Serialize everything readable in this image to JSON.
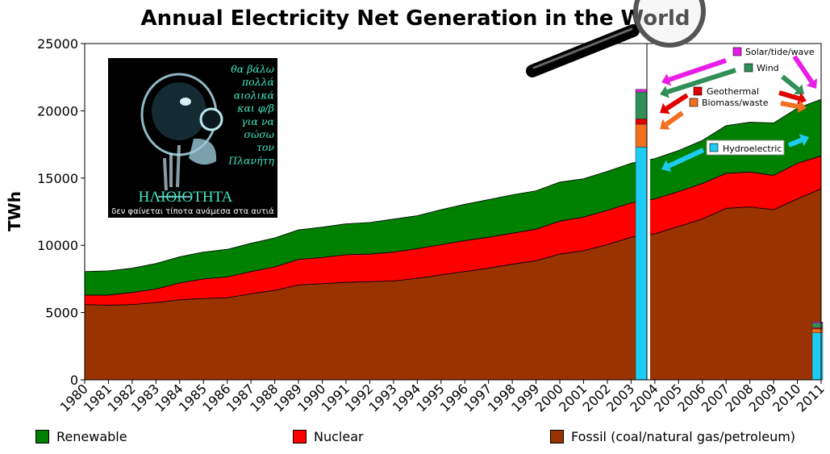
{
  "chart_data": {
    "type": "area",
    "title": "Annual Electricity Net Generation in the World",
    "ylabel": "TWh",
    "xlabel": "",
    "ylim": [
      0,
      25000
    ],
    "yticks": [
      "0",
      "5000",
      "10000",
      "15000",
      "20000",
      "25000"
    ],
    "x": [
      "1980",
      "1981",
      "1982",
      "1983",
      "1984",
      "1985",
      "1986",
      "1987",
      "1988",
      "1989",
      "1990",
      "1991",
      "1992",
      "1993",
      "1994",
      "1995",
      "1996",
      "1997",
      "1998",
      "1999",
      "2000",
      "2001",
      "2002",
      "2003",
      "2004",
      "2005",
      "2006",
      "2007",
      "2008",
      "2009",
      "2010",
      "2011"
    ],
    "stacked": true,
    "series": [
      {
        "name": "Fossil (coal/natural gas/petroleum)",
        "color": "#993300",
        "values": [
          5600,
          5550,
          5600,
          5750,
          5950,
          6050,
          6100,
          6400,
          6650,
          7050,
          7150,
          7250,
          7300,
          7350,
          7550,
          7800,
          8050,
          8300,
          8600,
          8850,
          9350,
          9600,
          10050,
          10600,
          10850,
          11400,
          11950,
          12750,
          12850,
          12650,
          13450,
          14200
        ]
      },
      {
        "name": "Nuclear",
        "color": "#ff0000",
        "values": [
          700,
          750,
          900,
          1000,
          1250,
          1450,
          1550,
          1650,
          1750,
          1900,
          1950,
          2050,
          2050,
          2150,
          2200,
          2250,
          2300,
          2300,
          2300,
          2350,
          2450,
          2500,
          2550,
          2550,
          2600,
          2600,
          2650,
          2600,
          2600,
          2550,
          2650,
          2450
        ]
      },
      {
        "name": "Renewable",
        "color": "#008000",
        "values": [
          1750,
          1800,
          1800,
          1900,
          1950,
          2000,
          2050,
          2100,
          2150,
          2200,
          2250,
          2300,
          2350,
          2450,
          2450,
          2600,
          2700,
          2800,
          2850,
          2850,
          2900,
          2850,
          2900,
          2950,
          3000,
          3050,
          3200,
          3550,
          3700,
          3900,
          4100,
          4200
        ]
      }
    ],
    "inset": {
      "type": "stacked-bar",
      "categories": [
        "2003",
        "2011"
      ],
      "series": [
        {
          "name": "Hydroelectric",
          "color": "#1ecbf2",
          "values": [
            17300,
            3500
          ]
        },
        {
          "name": "Biomass/waste",
          "color": "#f07020",
          "values": [
            1700,
            280
          ]
        },
        {
          "name": "Geothermal",
          "color": "#e00000",
          "values": [
            400,
            100
          ]
        },
        {
          "name": "Wind",
          "color": "#2f8f57",
          "values": [
            2000,
            340
          ]
        },
        {
          "name": "Solar/tide/wave",
          "color": "#e81ee8",
          "values": [
            200,
            80
          ]
        }
      ]
    },
    "legend": [
      {
        "label": "Renewable",
        "color": "#008000"
      },
      {
        "label": "Nuclear",
        "color": "#ff0000"
      },
      {
        "label": "Fossil (coal/natural gas/petroleum)",
        "color": "#993300"
      }
    ],
    "legend_position": "bottom",
    "grid": false
  },
  "poster": {
    "lines": [
      "θα βάλω",
      "πολλά",
      "αιολικά",
      "και φ/β",
      "για να",
      "σώσω",
      "τον",
      "Πλανήτη"
    ],
    "headline": "ΗΛΙΘΙΟΤΗΤΑ",
    "caption": "δεν φαίνεται τίποτα ανάμεσα στα αυτιά",
    "text_color": "#3fe8c0",
    "background": "#000000"
  }
}
